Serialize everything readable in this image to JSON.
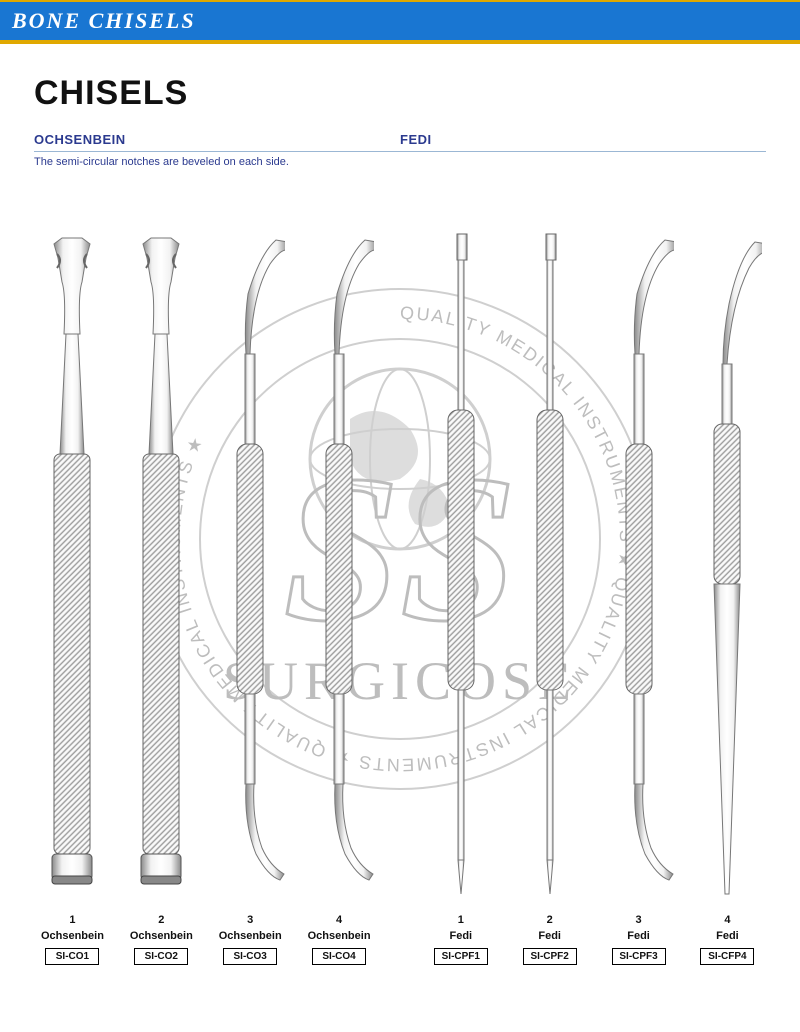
{
  "header": {
    "title": "BONE CHISELS"
  },
  "page": {
    "title": "CHISELS"
  },
  "sections": {
    "left": {
      "label": "OCHSENBEIN",
      "description": "The semi-circular notches are beveled on each side."
    },
    "right": {
      "label": "FEDI"
    }
  },
  "watermark": {
    "brand": "SURGICOSE",
    "ring_text": "QUALITY MEDICAL INSTRUMENTS  ★  QUALITY MEDICAL INSTRUMENTS  ★  QUALITY MEDICAL INSTRUMENTS  ★",
    "stroke": "#bfbfbf",
    "fill": "#d9d9d9"
  },
  "instruments": [
    {
      "num": "1",
      "name": "Ochsenbein",
      "sku": "SI-CO1",
      "shape": "thick-flat"
    },
    {
      "num": "2",
      "name": "Ochsenbein",
      "sku": "SI-CO2",
      "shape": "thick-flat"
    },
    {
      "num": "3",
      "name": "Ochsenbein",
      "sku": "SI-CO3",
      "shape": "double-curve"
    },
    {
      "num": "4",
      "name": "Ochsenbein",
      "sku": "SI-CO4",
      "shape": "double-curve"
    },
    {
      "num": "1",
      "name": "Fedi",
      "sku": "SI-CPF1",
      "shape": "double-straight"
    },
    {
      "num": "2",
      "name": "Fedi",
      "sku": "SI-CPF2",
      "shape": "double-straight"
    },
    {
      "num": "3",
      "name": "Fedi",
      "sku": "SI-CPF3",
      "shape": "double-curve"
    },
    {
      "num": "4",
      "name": "Fedi",
      "sku": "SI-CFP4",
      "shape": "taper-single"
    }
  ],
  "colors": {
    "header_bg": "#1976d2",
    "accent": "#e0a800",
    "subhead": "#2b3a8f",
    "steel_light": "#f2f2f2",
    "steel_mid": "#cfcfcf",
    "steel_dark": "#8a8a8a"
  }
}
